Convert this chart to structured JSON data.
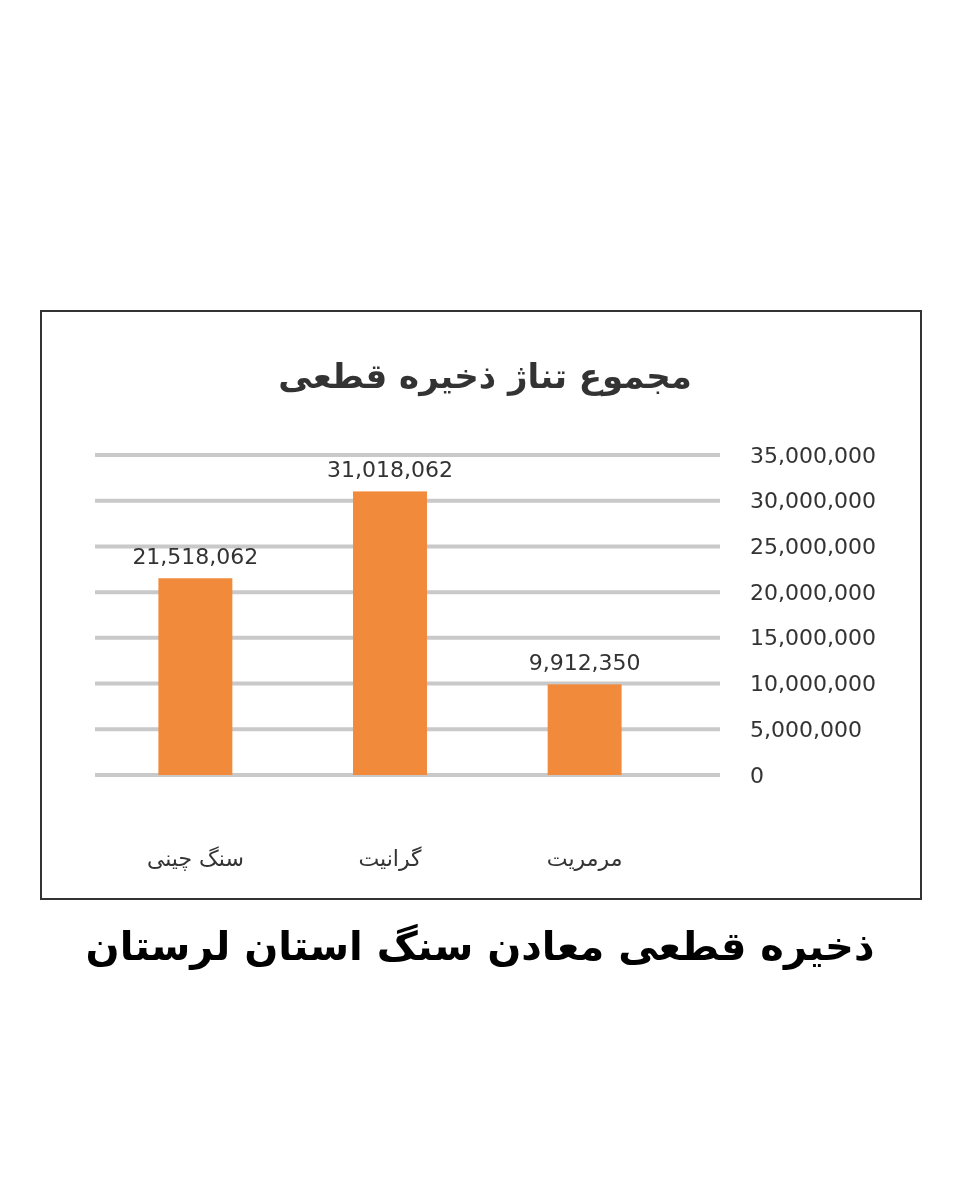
{
  "chart_data": {
    "type": "bar",
    "title": "مجموع تناژ ذخیره قطعی",
    "categories": [
      "سنگ چینی",
      "گرانیت",
      "مرمریت"
    ],
    "values": [
      21518062,
      31018062,
      9912350
    ],
    "value_labels": [
      "21,518,062",
      "31,018,062",
      "9,912,350"
    ],
    "color": "#f28a3c",
    "ylim": [
      0,
      35000000
    ],
    "yticks": [
      0,
      {
        "value": 5000000,
        "label": "5,000,000"
      },
      {
        "value": 10000000,
        "label": "10,000,000"
      },
      {
        "value": 15000000,
        "label": "15,000,000"
      },
      {
        "value": 20000000,
        "label": "20,000,000"
      },
      {
        "value": 25000000,
        "label": "25,000,000"
      },
      {
        "value": 30000000,
        "label": "30,000,000"
      },
      {
        "value": 35000000,
        "label": "35,000,000"
      }
    ],
    "grid": "y",
    "annotations": [
      "ذخیره قطعی معادن سنگ استان لرستان"
    ]
  }
}
